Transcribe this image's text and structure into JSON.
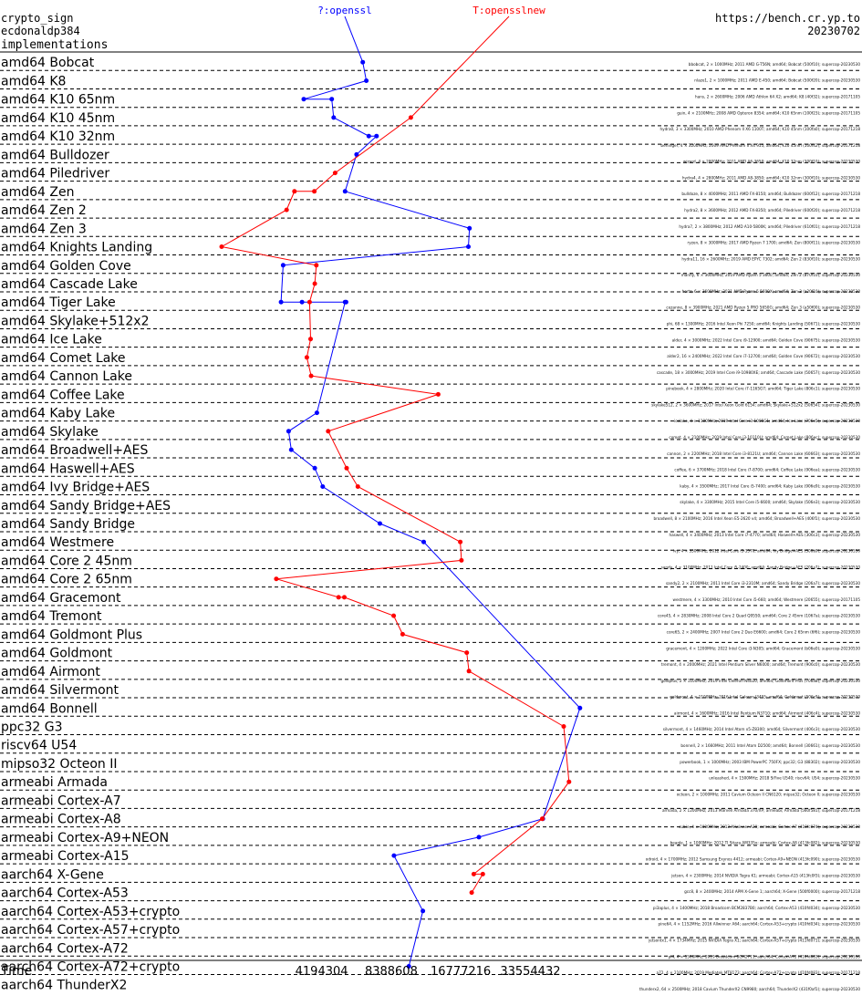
{
  "header": {
    "operation": "crypto_sign",
    "primitive": "ecdonaldp384",
    "section": "implementations",
    "url": "https://bench.cr.yp.to",
    "date": "20230702"
  },
  "chart_data": {
    "type": "line",
    "xlabel": "Time",
    "x_scale": "log2",
    "x_ticks": [
      4194304,
      8388608,
      16777216,
      33554432
    ],
    "x_tick_labels": [
      "4194304",
      "8388608",
      "16777216",
      "33554432"
    ],
    "xlim": [
      1048576,
      134217728
    ],
    "grid": "dashed horizontal separators",
    "categories": [
      "amd64 Bobcat",
      "amd64 K8",
      "amd64 K10 65nm",
      "amd64 K10 45nm",
      "amd64 K10 32nm",
      "amd64 Bulldozer",
      "amd64 Piledriver",
      "amd64 Zen",
      "amd64 Zen 2",
      "amd64 Zen 3",
      "amd64 Knights Landing",
      "amd64 Golden Cove",
      "amd64 Cascade Lake",
      "amd64 Tiger Lake",
      "amd64 Skylake+512x2",
      "amd64 Ice Lake",
      "amd64 Comet Lake",
      "amd64 Cannon Lake",
      "amd64 Coffee Lake",
      "amd64 Kaby Lake",
      "amd64 Skylake",
      "amd64 Broadwell+AES",
      "amd64 Haswell+AES",
      "amd64 Ivy Bridge+AES",
      "amd64 Sandy Bridge+AES",
      "amd64 Sandy Bridge",
      "amd64 Westmere",
      "amd64 Core 2 45nm",
      "amd64 Core 2 65nm",
      "amd64 Gracemont",
      "amd64 Tremont",
      "amd64 Goldmont Plus",
      "amd64 Goldmont",
      "amd64 Airmont",
      "amd64 Silvermont",
      "amd64 Bonnell",
      "ppc32 G3",
      "riscv64 U54",
      "mipso32 Octeon II",
      "armeabi Armada",
      "armeabi Cortex-A7",
      "armeabi Cortex-A8",
      "armeabi Cortex-A9+NEON",
      "armeabi Cortex-A15",
      "aarch64 X-Gene",
      "aarch64 Cortex-A53",
      "aarch64 Cortex-A53+crypto",
      "aarch64 Cortex-A57+crypto",
      "aarch64 Cortex-A72",
      "aarch64 Cortex-A72+crypto",
      "aarch64 ThunderX2"
    ],
    "row_labels": [
      "bbobcat, 2 × 1000MHz; 2011 AMD G-T56N; amd64; Bobcat (500f10); supercop-20230530",
      "nlaze1, 2 × 1000MHz; 2011 AMD E-450; amd64; Bobcat (500f20); supercop-20230530",
      "hans, 2 × 2600MHz; 2006 AMD Athlon 64 X2; amd64; K8 (40f32); supercop-20171105",
      "guin, 4 × 2100MHz; 2008 AMD Opteron 8354; amd64; K10 65nm (100f23); supercop-20171105",
      "hydra0, 3 × 3300MHz; 2010 AMD Phenom II X6 1100T; amd64; K10 45nm (100fa0); supercop-20171218",
      "berlinger, 4 × 3200MHz; 2009 AMD Phenom II X4 955; amd64; K10 45nm (100f42); supercop-20171218",
      "wizard, 4 × 2800MHz; 2011 AMD A6-3650; amd64; K10 32nm (300f10); supercop-20230530",
      "hydra4, 4 × 2800MHz; 2011 AMD A8-3850; amd64; K10 32nm (300f10); supercop-20230530",
      "bulldoze, 8 × 4000MHz; 2011 AMD FX-8150; amd64; Bulldozer (600f12); supercop-20171218",
      "hydra2, 8 × 3600MHz; 2012 AMD FX-8350; amd64; Piledriver (600f20); supercop-20171218",
      "hydra7, 2 × 3800MHz; 2012 AMD A10-5800K; amd64; Piledriver (610f01); supercop-20171218",
      "ryzen, 8 × 3000MHz; 2017 AMD Ryzen 7 1700; amd64; Zen (800f11); supercop-20230530",
      "hydra11, 16 × 2600MHz; 2019 AMD EPYC 7302; amd64; Zen 2 (830f10); supercop-20230530",
      "manny, 6 × 3600MHz; 2019 AMD Ryzen 5 3600; amd64; Zen 2 (870f10); supercop-20230530",
      "hertz, 6 × 3600MHz; 2021 AMD Ryzen 5 5600X; amd64; Zen 3 (a20f10); supercop-20230530",
      "cezanne, 8 × 3900MHz; 2021 AMD Ryzen 5 PRO 5650G; amd64; Zen 3 (a50f00); supercop-20230530",
      "phi, 68 × 1300MHz; 2016 Intel Xeon Phi 7250; amd64; Knights Landing (50671); supercop-20230530",
      "alder, 4 × 3000MHz; 2022 Intel Core i9-12900; amd64; Golden Cove (90675); supercop-20230530",
      "alder2, 16 × 2400MHz; 2022 Intel Core i7-12700; amd64; Golden Cove (90672); supercop-20230530",
      "cascade, 18 × 3000MHz; 2019 Intel Core i9-10980XE; amd64; Cascade Lake (50657); supercop-20230530",
      "pinebook, 4 × 2800MHz; 2020 Intel Core i7-1165G7; amd64; Tiger Lake (806c1); supercop-20230530",
      "skylake512, 2 × 3600MHz; 2017 Intel Xeon Gold 6154; amd64; Skylake+512x2 (50654); supercop-20230530",
      "icelake, 4 × 1100MHz; 2019 Intel Core i3-1005G1; amd64; Ice Lake (706e5); supercop-20230530",
      "comet, 4 × 2100MHz; 2019 Intel Core i3-10110U; amd64; Comet Lake (806ec); supercop-20230530",
      "cannon, 2 × 2200MHz; 2018 Intel Core i3-8121U; amd64; Cannon Lake (60663); supercop-20230530",
      "coffee, 6 × 3700MHz; 2018 Intel Core i7-8700; amd64; Coffee Lake (906ea); supercop-20230530",
      "kaby, 4 × 3500MHz; 2017 Intel Core i5-7400; amd64; Kaby Lake (906e9); supercop-20230530",
      "skylake, 4 × 3300MHz; 2015 Intel Core i5-6600; amd64; Skylake (506e3); supercop-20230530",
      "broadwell, 8 × 2100MHz; 2016 Intel Xeon E5-2620 v4; amd64; Broadwell+AES (406f1); supercop-20230530",
      "haswell, 4 × 3400MHz; 2013 Intel Core i7-4770; amd64; Haswell+AES (306c3); supercop-20230530",
      "ivy, 4 × 3500MHz; 2012 Intel Core i5-3570; amd64; Ivy Bridge+AES (306a9); supercop-20230530",
      "sandy, 4 × 3100MHz; 2011 Intel Core i5-2400; amd64; Sandy Bridge+AES (206a7); supercop-20230530",
      "sandy2, 2 × 2100MHz; 2011 Intel Core i3-2310M; amd64; Sandy Bridge (206a7); supercop-20230530",
      "westmere, 4 × 3300MHz; 2010 Intel Core i5-660; amd64; Westmere (20655); supercop-20171105",
      "core45, 4 × 2830MHz; 2008 Intel Core 2 Quad Q9550; amd64; Core 2 45nm (1067a); supercop-20230530",
      "core65, 2 × 2400MHz; 2007 Intel Core 2 Duo E6600; amd64; Core 2 65nm (6f6); supercop-20230530",
      "gracemont, 4 × 1200MHz; 2022 Intel Core i3-N305; amd64; Gracemont (b06e0); supercop-20230530",
      "tremont, 4 × 2000MHz; 2021 Intel Pentium Silver N6000; amd64; Tremont (906c0); supercop-20230530",
      "goldplus, 2 × 1100MHz; 2019 Intel Celeron N4020; amd64; Goldmont Plus (706a8); supercop-20230530",
      "goldmont, 4 × 1100MHz; 2016 Intel Celeron J3455; amd64; Goldmont (506c9); supercop-20230530",
      "airmont, 4 × 1600MHz; 2016 Intel Pentium N3710; amd64; Airmont (406c4); supercop-20230530",
      "silvermont, 4 × 1460MHz; 2014 Intel Atom x5-Z8300; amd64; Silvermont (406c3); supercop-20230530",
      "bonnell, 2 × 1660MHz; 2011 Intel Atom D2500; amd64; Bonnell (30661); supercop-20230530",
      "powerbook, 1 × 1000MHz; 2003 IBM PowerPC 750FX; ppc32; G3 (88302); supercop-20230530",
      "unleashed, 4 × 1500MHz; 2018 SiFive U540; riscv64; U54; supercop-20230530",
      "octeon, 2 × 1000MHz; 2011 Cavium Octeon II CN6120; mipso32; Octeon II; supercop-20230530",
      "armada, 2 × 1200MHz; 2013 Marvell Armada 370/XP; armeabi; Armada (560f581); supercop-20171218",
      "cubie, 4 × 1000MHz; 2013 Allwinner A20; armeabi; Cortex-A7 (410fc074); supercop-20230530",
      "beagle, 1 × 1000MHz; 2012 TI Sitara AM335x; armeabi; Cortex-A8 (413fc082); supercop-20230530",
      "odroid, 4 × 1700MHz; 2012 Samsung Exynos 4412; armeabi; Cortex-A9+NEON (413fc090); supercop-20230530",
      "jetson, 4 × 2300MHz; 2014 NVIDIA Tegra K1; armeabi; Cortex-A15 (413fc0f3); supercop-20230530",
      "gcc8, 8 × 2400MHz; 2014 APM X-Gene 1; aarch64; X-Gene (500f0000); supercop-20171218",
      "pi3aplus, 4 × 1400MHz; 2018 Broadcom BCM2837B0; aarch64; Cortex-A53 (410fd034); supercop-20230530",
      "pine64, 4 × 1152MHz; 2016 Allwinner A64; aarch64; Cortex-A53+crypto (410fd034); supercop-20230530",
      "jetsontx1, 4 × 1734MHz; 2015 NVIDIA Tegra X1; aarch64; Cortex-A57+crypto (411fd071); supercop-20230530",
      "pi4, 4 × 1500MHz; 2019 Broadcom BCM2711; aarch64; Cortex-A72 (410fd083); supercop-20230530",
      "a72, 4 × 2100MHz; 2019 Mediatek MT8173; aarch64; Cortex-A72+crypto (410fd083); supercop-20171218",
      "thunderx2, 64 × 2500MHz; 2018 Cavium ThunderX2 CN9980; aarch64; ThunderX2 (431f0af1); supercop-20230530"
    ],
    "series": [
      {
        "name": "?:openssl",
        "color": "#0000ff",
        "points": [
          {
            "row": 1,
            "x": 6320000
          },
          {
            "row": 2,
            "x": 6550000
          },
          {
            "row": 3,
            "x": 3510000
          },
          {
            "row": 3,
            "x": 4640000
          },
          {
            "row": 4,
            "x": 4730000
          },
          {
            "row": 5,
            "x": 6710000
          },
          {
            "row": 5,
            "x": 7250000
          },
          {
            "row": 6,
            "x": 5940000
          },
          {
            "row": 8,
            "x": 5300000
          },
          {
            "row": 10,
            "x": 18300000
          },
          {
            "row": 11,
            "x": 18100000
          },
          {
            "row": 12,
            "x": 2860000
          },
          {
            "row": 14,
            "x": 2800000
          },
          {
            "row": 14,
            "x": 3450000
          },
          {
            "row": 14,
            "x": 5350000
          },
          {
            "row": 14,
            "x": 5300000
          },
          {
            "row": 20,
            "x": 4000000
          },
          {
            "row": 21,
            "x": 3020000
          },
          {
            "row": 22,
            "x": 3100000
          },
          {
            "row": 23,
            "x": 3920000
          },
          {
            "row": 24,
            "x": 4240000
          },
          {
            "row": 26,
            "x": 7500000
          },
          {
            "row": 27,
            "x": 11600000
          },
          {
            "row": 36,
            "x": 55000000
          },
          {
            "row": 42,
            "x": 38000000
          },
          {
            "row": 43,
            "x": 20100000
          },
          {
            "row": 44,
            "x": 8620000
          },
          {
            "row": 47,
            "x": 11500000
          },
          {
            "row": 50,
            "x": 10000000
          }
        ]
      },
      {
        "name": "T:opensslnew",
        "color": "#ff0000",
        "points": [
          {
            "row": 4,
            "x": 10200000
          },
          {
            "row": 7,
            "x": 4800000
          },
          {
            "row": 8,
            "x": 3900000
          },
          {
            "row": 8,
            "x": 3200000
          },
          {
            "row": 9,
            "x": 2960000
          },
          {
            "row": 11,
            "x": 1550000
          },
          {
            "row": 12,
            "x": 3980000
          },
          {
            "row": 13,
            "x": 3920000
          },
          {
            "row": 14,
            "x": 3720000
          },
          {
            "row": 16,
            "x": 3760000
          },
          {
            "row": 17,
            "x": 3620000
          },
          {
            "row": 18,
            "x": 3780000
          },
          {
            "row": 19,
            "x": 13400000
          },
          {
            "row": 21,
            "x": 4480000
          },
          {
            "row": 23,
            "x": 5380000
          },
          {
            "row": 24,
            "x": 6020000
          },
          {
            "row": 27,
            "x": 16700000
          },
          {
            "row": 28,
            "x": 16900000
          },
          {
            "row": 29,
            "x": 2670000
          },
          {
            "row": 30,
            "x": 4970000
          },
          {
            "row": 30,
            "x": 5260000
          },
          {
            "row": 31,
            "x": 8600000
          },
          {
            "row": 32,
            "x": 9400000
          },
          {
            "row": 33,
            "x": 17800000
          },
          {
            "row": 34,
            "x": 18200000
          },
          {
            "row": 37,
            "x": 46800000
          },
          {
            "row": 40,
            "x": 49300000
          },
          {
            "row": 42,
            "x": 37800000
          },
          {
            "row": 45,
            "x": 19100000
          },
          {
            "row": 45,
            "x": 20900000
          },
          {
            "row": 46,
            "x": 18700000
          }
        ]
      }
    ]
  }
}
